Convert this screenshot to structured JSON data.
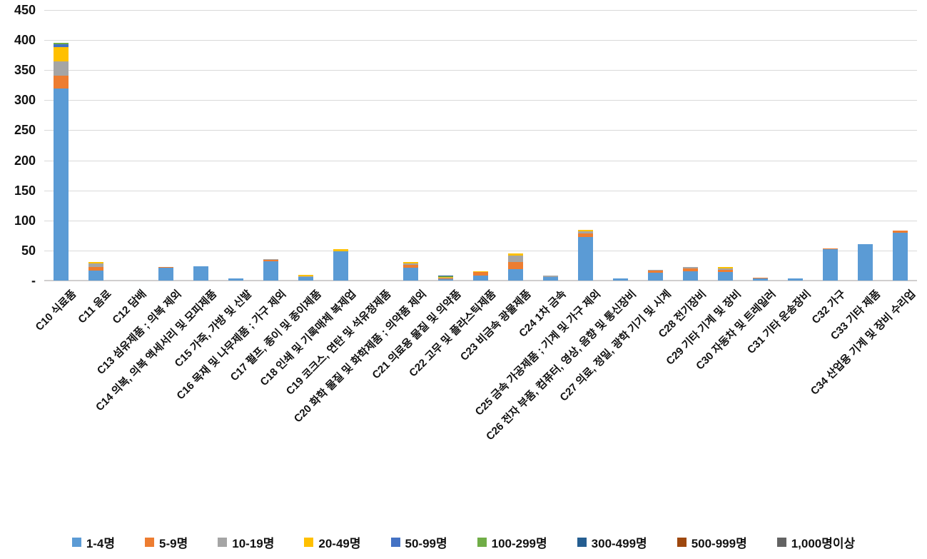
{
  "chart_data": {
    "type": "bar",
    "stacked": true,
    "title": "",
    "xlabel": "",
    "ylabel": "",
    "ylim": [
      0,
      450
    ],
    "ytick_step": 50,
    "ytick_labels": [
      "-",
      "50",
      "100",
      "150",
      "200",
      "250",
      "300",
      "350",
      "400",
      "450"
    ],
    "zero_tick_label": "-",
    "grid": true,
    "legend_position": "bottom",
    "gridline_color": "#d9d9d9",
    "axis_color": "#d0cece",
    "text_color": "#111111",
    "categories": [
      "C10 식료품",
      "C11 음료",
      "C12 담배",
      "C13 섬유제품 ; 의복 제외",
      "C14 의복, 의복 액세서리 및 모피제품",
      "C15 가죽, 가방 및 신발",
      "C16 목재 및 나무제품 ; 가구 제외",
      "C17 펄프, 종이 및 종이제품",
      "C18 인쇄 및 기록매체 복제업",
      "C19 코크스, 연탄 및 석유정제품",
      "C20 화학 물질 및 화학제품 ; 의약품 제외",
      "C21 의료용 물질 및 의약품",
      "C22 고무 및 플라스틱제품",
      "C23 비금속 광물제품",
      "C24 1차 금속",
      "C25 금속 가공제품 ; 기계 및 가구 제외",
      "C26 전자 부품, 컴퓨터, 영상, 음향 및 통신장비",
      "C27 의료, 정밀, 광학 기기 및 시계",
      "C28 전기장비",
      "C29 기타 기계 및 장비",
      "C30 자동차 및 트레일러",
      "C31 기타 운송장비",
      "C32 가구",
      "C33 기타 제품",
      "C34 산업용 기계 및 장비 수리업"
    ],
    "series": [
      {
        "name": "1-4명",
        "color": "#5B9BD5",
        "values": [
          319,
          17,
          0,
          21,
          24,
          3,
          32,
          6,
          49,
          0,
          21,
          3,
          8,
          19,
          6,
          72,
          4,
          13,
          15,
          14,
          4,
          4,
          53,
          61,
          80
        ]
      },
      {
        "name": "5-9명",
        "color": "#ED7D31",
        "values": [
          22,
          5,
          0,
          2,
          0,
          0,
          3,
          0,
          0,
          0,
          5,
          1,
          6,
          12,
          0,
          6,
          0,
          4,
          5,
          4,
          1,
          0,
          1,
          0,
          3
        ]
      },
      {
        "name": "10-19명",
        "color": "#A5A5A5",
        "values": [
          24,
          6,
          0,
          0,
          0,
          0,
          1,
          1,
          0,
          0,
          3,
          1,
          1,
          10,
          2,
          4,
          0,
          1,
          2,
          2,
          0,
          0,
          0,
          0,
          0
        ]
      },
      {
        "name": "20-49명",
        "color": "#FFC000",
        "values": [
          23,
          3,
          0,
          0,
          0,
          0,
          0,
          2,
          3,
          0,
          2,
          1,
          1,
          4,
          0,
          2,
          0,
          0,
          0,
          2,
          0,
          0,
          0,
          0,
          0
        ]
      },
      {
        "name": "50-99명",
        "color": "#4472C4",
        "values": [
          5,
          0,
          0,
          0,
          0,
          0,
          0,
          0,
          0,
          0,
          0,
          1,
          0,
          0,
          0,
          0,
          0,
          0,
          0,
          0,
          0,
          0,
          0,
          0,
          0
        ]
      },
      {
        "name": "100-299명",
        "color": "#70AD47",
        "values": [
          2,
          0,
          0,
          0,
          0,
          0,
          0,
          0,
          0,
          0,
          0,
          0.5,
          0,
          0,
          0,
          0,
          0,
          0,
          0,
          0,
          0,
          0,
          0,
          0,
          0
        ]
      },
      {
        "name": "300-499명",
        "color": "#255E91",
        "values": [
          0,
          0,
          0,
          0,
          0,
          0,
          0,
          0,
          0,
          0,
          0,
          0.5,
          0,
          0,
          0,
          0,
          0,
          0,
          0,
          0,
          0,
          0,
          0,
          0,
          0
        ]
      },
      {
        "name": "500-999명",
        "color": "#9E480E",
        "values": [
          0,
          0,
          0,
          0,
          0,
          0,
          0,
          0,
          0,
          0,
          0,
          0,
          0,
          0,
          0,
          0,
          0,
          0,
          0,
          0,
          0,
          0,
          0,
          0,
          0
        ]
      },
      {
        "name": "1,000명이상",
        "color": "#636363",
        "values": [
          0,
          0,
          0,
          0,
          0,
          0,
          0,
          0,
          0,
          0,
          0,
          0,
          0,
          0,
          0,
          0,
          0,
          0,
          0,
          0,
          0,
          0,
          0,
          0,
          0
        ]
      }
    ]
  }
}
